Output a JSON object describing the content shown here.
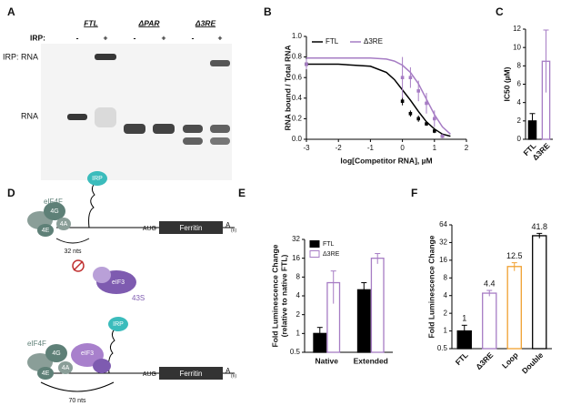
{
  "gel": {
    "panel": "A",
    "lanes": [
      "FTL",
      "ΔPAR",
      "Δ3RE"
    ],
    "irp_label": "IRP:",
    "signs": [
      "-",
      "+",
      "-",
      "+",
      "-",
      "+"
    ],
    "band_labels": [
      "IRP: RNA",
      "RNA"
    ]
  },
  "diagram": {
    "panel": "D",
    "top": {
      "eif4f": "eIF4F",
      "g": "4G",
      "e": "4E",
      "a": "4A",
      "irp": "IRP",
      "aug": "AUG",
      "gene": "Ferritin",
      "tail": "A",
      "tail_sub": "(n)",
      "distance": "32 nts",
      "eif3": "eIF3",
      "s43": "43S"
    },
    "bottom": {
      "eif4f": "eIF4F",
      "g": "4G",
      "e": "4E",
      "a": "4A",
      "eif3": "eIF3",
      "irp": "IRP",
      "aug": "AUG",
      "gene": "Ferritin",
      "tail": "A",
      "tail_sub": "(n)",
      "distance": "70 nts"
    }
  },
  "chart_data": [
    {
      "type": "line",
      "panel": "B",
      "xlabel": "log[Competitor RNA], µM",
      "ylabel": "RNA bound / Total RNA",
      "xlim": [
        -3,
        2
      ],
      "xticks": [
        -3,
        -2,
        -1,
        0,
        1,
        2
      ],
      "ylim": [
        0,
        1
      ],
      "yticks": [
        {
          "value": 0,
          "label": "0.0"
        },
        {
          "value": 0.2,
          "label": "0.2"
        },
        {
          "value": 0.4,
          "label": "0.4"
        },
        {
          "value": 0.6,
          "label": "0.6"
        },
        {
          "value": 0.8,
          "label": "0.8"
        },
        {
          "value": 1,
          "label": "1.0"
        }
      ],
      "legend": "upper left",
      "x": [
        -3,
        0,
        0.25,
        0.5,
        0.75,
        1,
        1.25
      ],
      "fit_x": [
        -3,
        -2,
        -1,
        -0.5,
        -0.25,
        0,
        0.25,
        0.5,
        0.75,
        1,
        1.25,
        1.5
      ],
      "series": [
        {
          "name": "FTL",
          "color": "#000000",
          "values": [
            0.73,
            0.37,
            0.25,
            0.2,
            0.15,
            0.08,
            0.03
          ],
          "errors": [
            0.04,
            0.04,
            0.03,
            0.03,
            0.02,
            0.02,
            0.01
          ],
          "fit": [
            0.73,
            0.73,
            0.71,
            0.65,
            0.58,
            0.48,
            0.38,
            0.27,
            0.17,
            0.1,
            0.05,
            0.03
          ]
        },
        {
          "name": "Δ3RE",
          "color": "#a67cc4",
          "values": [
            0.73,
            0.6,
            0.6,
            0.47,
            0.35,
            0.2,
            0.03
          ],
          "errors": [
            0.05,
            0.2,
            0.1,
            0.1,
            0.1,
            0.08,
            0.02
          ],
          "fit": [
            0.79,
            0.79,
            0.79,
            0.78,
            0.76,
            0.72,
            0.65,
            0.54,
            0.39,
            0.24,
            0.12,
            0.05
          ]
        }
      ]
    },
    {
      "type": "bar",
      "panel": "C",
      "ylabel": "IC50 (µM)",
      "rotate_xticks": true,
      "categories": [
        "FTL",
        "Δ3RE"
      ],
      "ylim": [
        0,
        12
      ],
      "yticks": [
        0,
        2,
        4,
        6,
        8,
        10,
        12
      ],
      "series": [
        {
          "colors": [
            "#000000",
            "#a67cc4"
          ],
          "fills": [
            "#000000",
            "#ffffff"
          ],
          "values": [
            2,
            8.5
          ],
          "errors": [
            0.8,
            3.4
          ]
        }
      ]
    },
    {
      "type": "bar",
      "panel": "E",
      "ylabel": [
        "Fold Luminescence Change",
        "(relative to native FTL)"
      ],
      "log_y": true,
      "legend": "upper left",
      "categories": [
        "Native",
        "Extended"
      ],
      "ylim": [
        0.5,
        32
      ],
      "yticks": [
        0.5,
        1,
        2,
        4,
        8,
        16,
        32
      ],
      "series": [
        {
          "name": "FTL",
          "color": "#000000",
          "fill": "#000000",
          "values": [
            1,
            5
          ],
          "errors": [
            0.25,
            1.5
          ]
        },
        {
          "name": "Δ3RE",
          "color": "#a67cc4",
          "fill": "#ffffff",
          "values": [
            6.5,
            16
          ],
          "errors": [
            3.5,
            3
          ]
        }
      ]
    },
    {
      "type": "bar",
      "panel": "F",
      "ylabel": "Fold Luminescence Change",
      "log_y": true,
      "rotate_xticks": true,
      "show_values": true,
      "categories": [
        "FTL",
        "Δ3RE",
        "Loop",
        "Double"
      ],
      "ylim": [
        0.5,
        64
      ],
      "yticks": [
        0.5,
        1,
        2,
        4,
        8,
        16,
        32,
        64
      ],
      "series": [
        {
          "colors": [
            "#000000",
            "#a67cc4",
            "#f0a030",
            "#000000"
          ],
          "fills": [
            "#000000",
            "#ffffff",
            "#ffffff",
            "#ffffff"
          ],
          "values": [
            1,
            4.4,
            12.5,
            41.8
          ],
          "errors": [
            0.25,
            0.5,
            2,
            4
          ]
        }
      ]
    }
  ]
}
